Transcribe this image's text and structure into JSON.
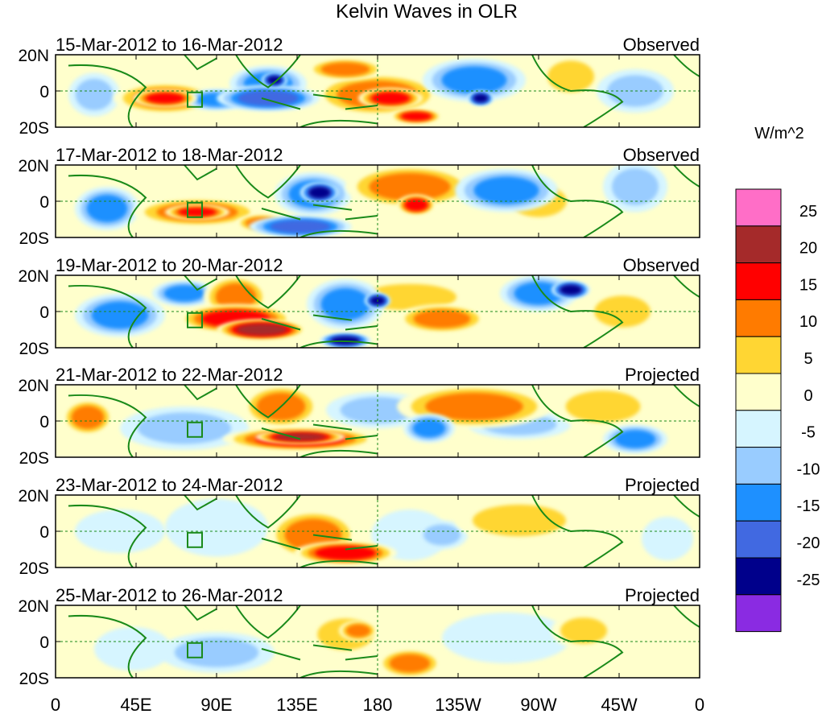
{
  "chart_data": {
    "type": "heatmap",
    "title": "Kelvin Waves in OLR",
    "xticks": [
      "0",
      "45E",
      "90E",
      "135E",
      "180",
      "135W",
      "90W",
      "45W",
      "0"
    ],
    "yticks": [
      "20N",
      "0",
      "20S"
    ],
    "colorbar": {
      "label": "W/m^2",
      "levels": [
        "25",
        "20",
        "15",
        "10",
        "5",
        "0",
        "-5",
        "-10",
        "-15",
        "-20",
        "-25"
      ],
      "colors": [
        "#ff6ec7",
        "#a52a2a",
        "#ff0000",
        "#ff7b00",
        "#ffd633",
        "#ffffcc",
        "#d6f5ff",
        "#99ccff",
        "#1e90ff",
        "#4169e1",
        "#00008b",
        "#8a2be2"
      ]
    },
    "panels": [
      {
        "dates": "15-Mar-2012 to 16-Mar-2012",
        "label": "Observed"
      },
      {
        "dates": "17-Mar-2012 to 18-Mar-2012",
        "label": "Observed"
      },
      {
        "dates": "19-Mar-2012 to 20-Mar-2012",
        "label": "Observed"
      },
      {
        "dates": "21-Mar-2012 to 22-Mar-2012",
        "label": "Projected"
      },
      {
        "dates": "23-Mar-2012 to 24-Mar-2012",
        "label": "Projected"
      },
      {
        "dates": "25-Mar-2012 to 26-Mar-2012",
        "label": "Projected"
      }
    ]
  }
}
